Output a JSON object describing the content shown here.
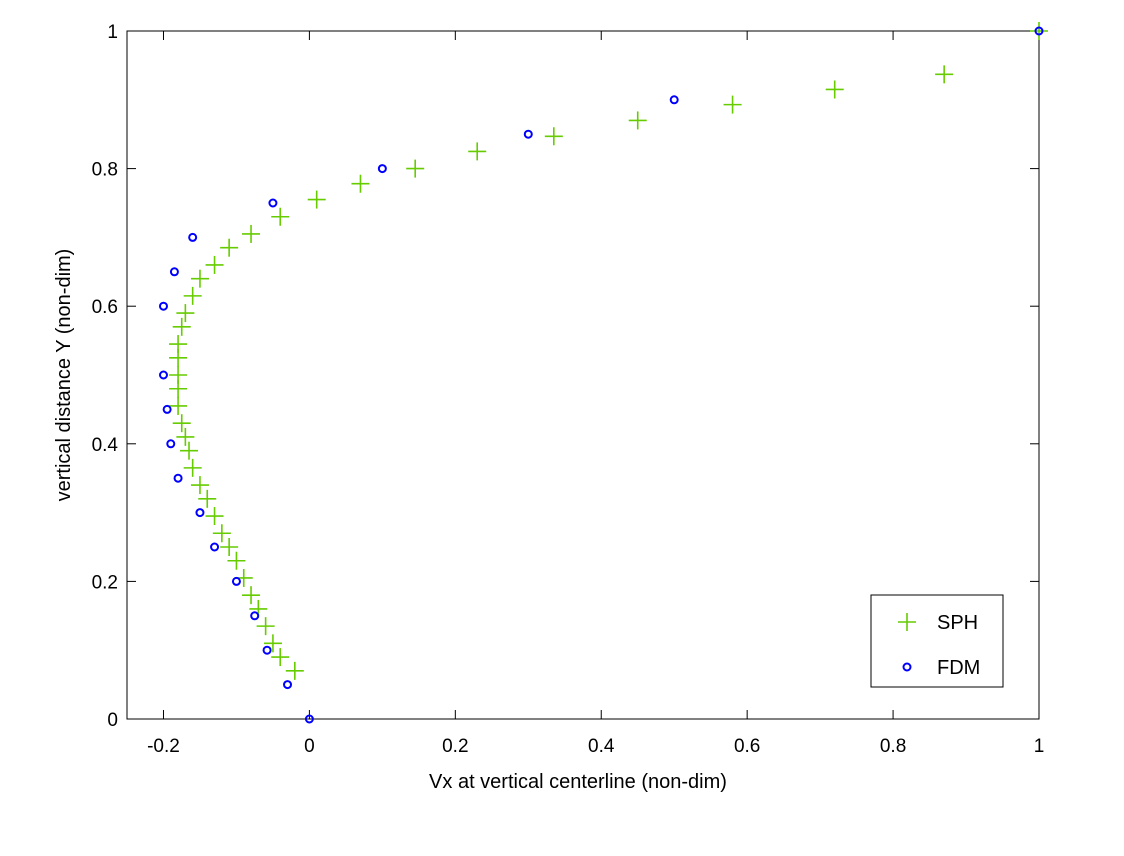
{
  "chart_data": {
    "type": "scatter",
    "title": "",
    "xlabel": "Vx at vertical centerline (non-dim)",
    "ylabel": "vertical distance Y (non-dim)",
    "xlim": [
      -0.25,
      1.0
    ],
    "ylim": [
      0,
      1
    ],
    "xticks": [
      "-0.2",
      "0",
      "0.2",
      "0.4",
      "0.6",
      "0.8",
      "1"
    ],
    "xtick_values": [
      -0.2,
      0,
      0.2,
      0.4,
      0.6,
      0.8,
      1
    ],
    "yticks": [
      "0",
      "0.2",
      "0.4",
      "0.6",
      "0.8",
      "1"
    ],
    "ytick_values": [
      0,
      0.2,
      0.4,
      0.6,
      0.8,
      1
    ],
    "grid": false,
    "legend_position": "bottom-right",
    "series": [
      {
        "name": "SPH",
        "marker": "plus",
        "color": "#66cc00",
        "x": [
          -0.02,
          -0.04,
          -0.05,
          -0.06,
          -0.07,
          -0.08,
          -0.09,
          -0.1,
          -0.11,
          -0.12,
          -0.13,
          -0.14,
          -0.15,
          -0.16,
          -0.165,
          -0.17,
          -0.175,
          -0.18,
          -0.18,
          -0.18,
          -0.18,
          -0.18,
          -0.175,
          -0.17,
          -0.16,
          -0.15,
          -0.13,
          -0.11,
          -0.08,
          -0.04,
          0.01,
          0.07,
          0.145,
          0.23,
          0.335,
          0.45,
          0.58,
          0.72,
          0.87,
          1.0
        ],
        "y": [
          0.07,
          0.09,
          0.11,
          0.135,
          0.16,
          0.18,
          0.205,
          0.23,
          0.25,
          0.27,
          0.295,
          0.32,
          0.34,
          0.365,
          0.39,
          0.41,
          0.43,
          0.455,
          0.48,
          0.5,
          0.525,
          0.545,
          0.57,
          0.59,
          0.615,
          0.64,
          0.66,
          0.685,
          0.705,
          0.73,
          0.755,
          0.778,
          0.8,
          0.825,
          0.847,
          0.87,
          0.893,
          0.915,
          0.937,
          1.0
        ]
      },
      {
        "name": "FDM",
        "marker": "circle",
        "color": "#0000ff",
        "x": [
          0.0,
          -0.03,
          -0.058,
          -0.075,
          -0.1,
          -0.13,
          -0.15,
          -0.18,
          -0.19,
          -0.195,
          -0.2,
          -0.2,
          -0.185,
          -0.16,
          -0.05,
          0.1,
          0.3,
          0.5,
          1.0
        ],
        "y": [
          0.0,
          0.05,
          0.1,
          0.15,
          0.2,
          0.25,
          0.3,
          0.35,
          0.4,
          0.45,
          0.5,
          0.6,
          0.65,
          0.7,
          0.75,
          0.8,
          0.85,
          0.9,
          1.0
        ]
      }
    ]
  }
}
